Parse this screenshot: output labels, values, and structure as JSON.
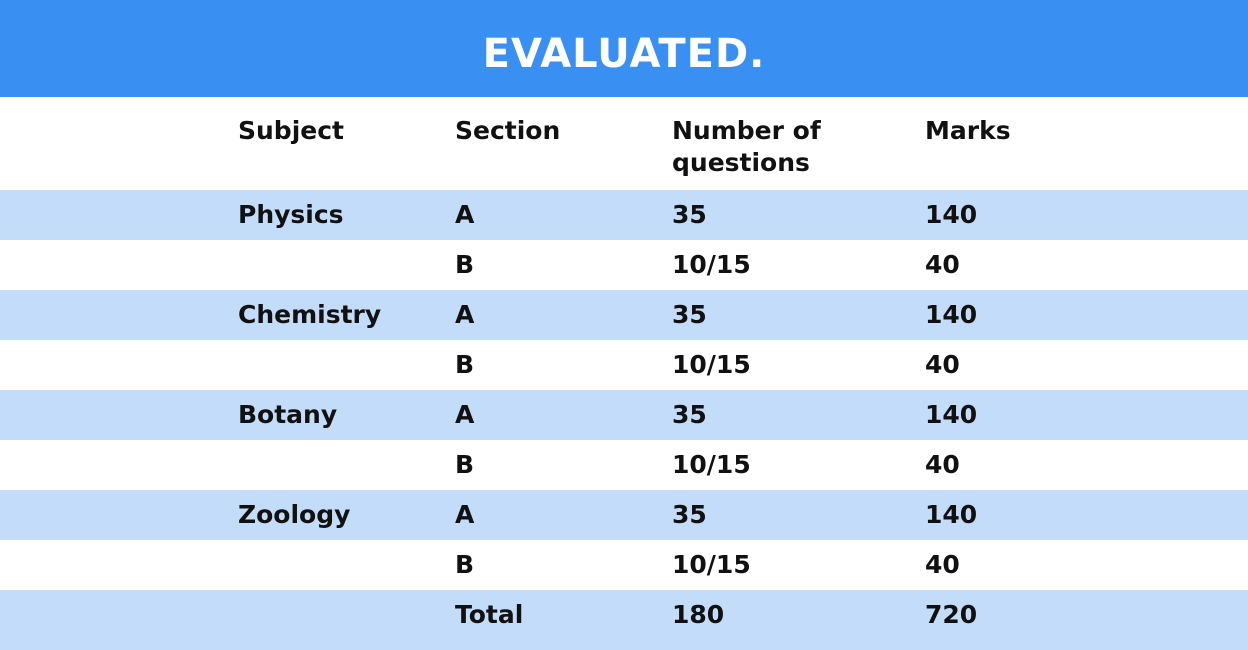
{
  "title": "EVALUATED.",
  "colors": {
    "banner": "#3a90f2",
    "stripe": "#c3dcf9",
    "plain": "#ffffff",
    "text": "#111111"
  },
  "table": {
    "headers": [
      "Subject",
      "Section",
      "Number of questions",
      "Marks"
    ],
    "rows": [
      {
        "subject": "Physics",
        "section": "A",
        "questions": "35",
        "marks": "140"
      },
      {
        "subject": "",
        "section": "B",
        "questions": "10/15",
        "marks": "40"
      },
      {
        "subject": "Chemistry",
        "section": "A",
        "questions": "35",
        "marks": "140"
      },
      {
        "subject": "",
        "section": "B",
        "questions": "10/15",
        "marks": "40"
      },
      {
        "subject": "Botany",
        "section": "A",
        "questions": "35",
        "marks": "140"
      },
      {
        "subject": "",
        "section": "B",
        "questions": "10/15",
        "marks": "40"
      },
      {
        "subject": "Zoology",
        "section": "A",
        "questions": "35",
        "marks": "140"
      },
      {
        "subject": "",
        "section": "B",
        "questions": "10/15",
        "marks": "40"
      },
      {
        "subject": "",
        "section": "Total",
        "questions": "180",
        "marks": "720"
      }
    ]
  }
}
